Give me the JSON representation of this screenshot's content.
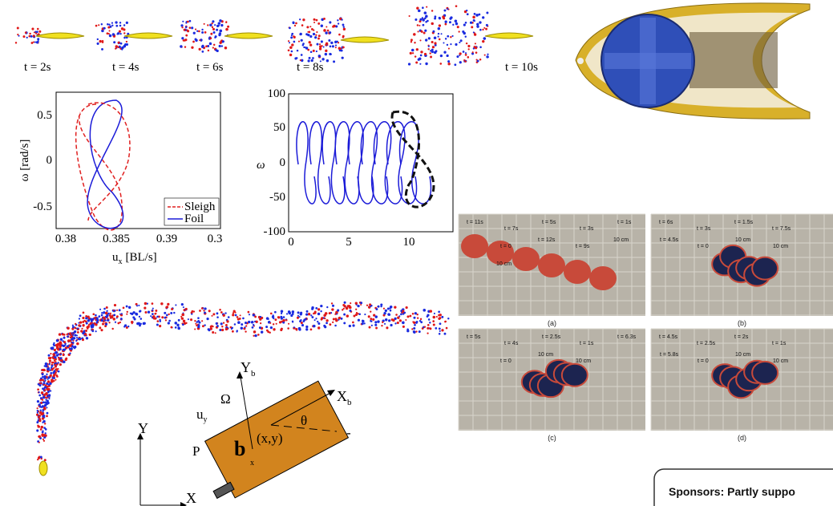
{
  "vortex_strip": {
    "labels": [
      "t = 2s",
      "t = 4s",
      "t = 6s",
      "t = 8s",
      "t = 10s"
    ]
  },
  "plot_left": {
    "ylabel": "ω [rad/s]",
    "xlabel": "u",
    "xlabel_sub": "x",
    "xlabel_unit": "[BL/s]",
    "yticks": [
      "0.5",
      "0",
      "-0.5"
    ],
    "xticks": [
      "0.38",
      "0.385",
      "0.39",
      "0.3"
    ],
    "legend": [
      "Sleigh",
      "Foil"
    ]
  },
  "plot_right": {
    "ylabel": "ω",
    "yticks": [
      "100",
      "50",
      "0",
      "-50",
      "-100"
    ],
    "xticks": [
      "0",
      "5",
      "10"
    ]
  },
  "photos": {
    "labels": [
      "(a)",
      "(b)",
      "(c)",
      "(d)"
    ],
    "a": [
      "t = 11s",
      "t = 7s",
      "t = 5s",
      "t = 3s",
      "t = 1s",
      "t = 0",
      "t = 12s",
      "t = 9s",
      "10 cm",
      "10 cm"
    ],
    "b": [
      "t = 6s",
      "t = 3s",
      "t = 1.5s",
      "t = 7.5s",
      "t = 4.5s",
      "t = 0",
      "10 cm",
      "10 cm"
    ],
    "c": [
      "t = 5s",
      "t = 4s",
      "t = 2.5s",
      "t = 1s",
      "t = 6.3s",
      "t = 0",
      "10 cm",
      "10 cm"
    ],
    "d": [
      "t = 4.5s",
      "t = 2.5s",
      "t = 2s",
      "t = 1s",
      "t = 5.8s",
      "t = 0",
      "10 cm",
      "10 cm"
    ]
  },
  "diagram": {
    "yb": "Y",
    "yb_sub": "b",
    "xb": "X",
    "xb_sub": "b",
    "omega": "Ω",
    "uy": "u",
    "uy_sub": "y",
    "theta": "θ",
    "pos": "(x,y)",
    "p": "P",
    "body": "b",
    "ux_sub": "x",
    "y": "Y",
    "x": "X"
  },
  "sponsors": {
    "text": "Sponsors: Partly suppo"
  }
}
